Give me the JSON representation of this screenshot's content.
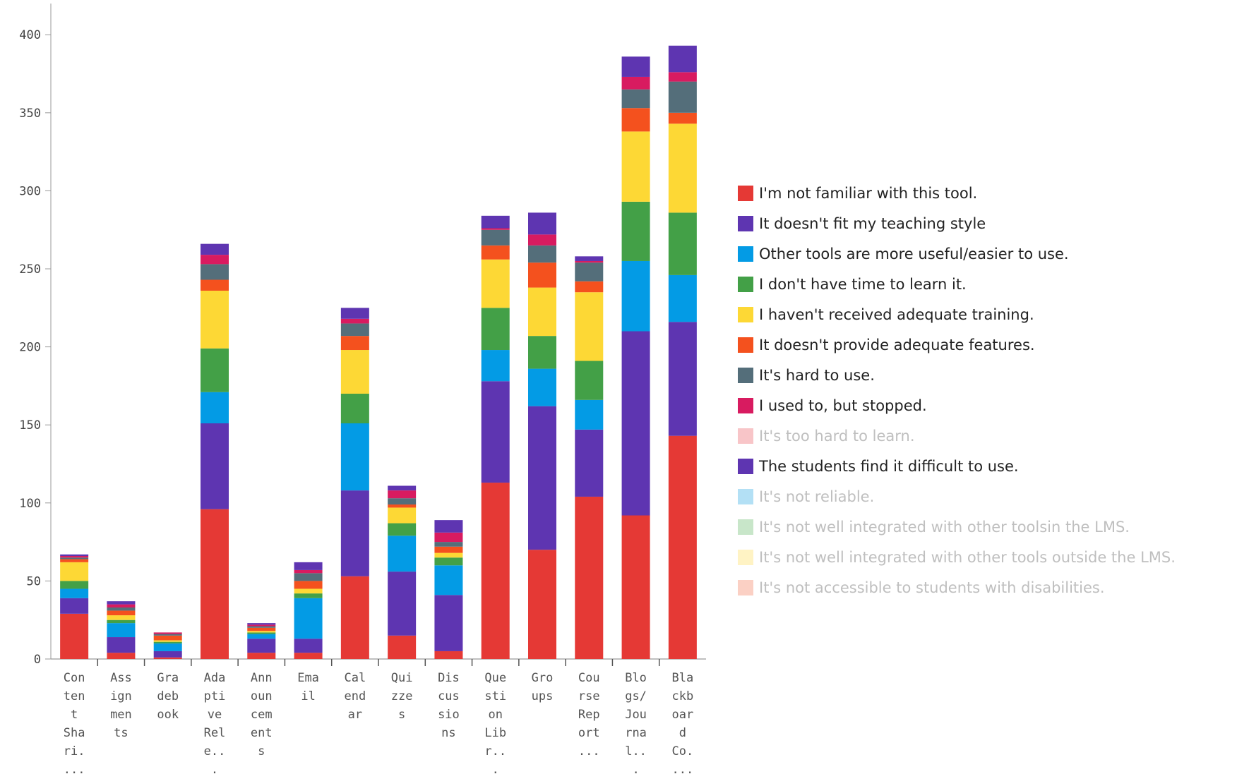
{
  "chart_data": {
    "type": "bar",
    "stacked": true,
    "ylim": [
      0,
      420
    ],
    "yticks": [
      0,
      50,
      100,
      150,
      200,
      250,
      300,
      350,
      400
    ],
    "legend_position": "right",
    "grid": false,
    "categories": [
      [
        "Con",
        "ten",
        "t",
        "Sha",
        "ri.",
        "..."
      ],
      [
        "Ass",
        "ign",
        "men",
        "ts"
      ],
      [
        "Gra",
        "deb",
        "ook"
      ],
      [
        "Ada",
        "pti",
        "ve",
        "Rel",
        "e..",
        "."
      ],
      [
        "Ann",
        "oun",
        "cem",
        "ent",
        "s"
      ],
      [
        "Ema",
        "il"
      ],
      [
        "Cal",
        "end",
        "ar"
      ],
      [
        "Qui",
        "zze",
        "s"
      ],
      [
        "Dis",
        "cus",
        "sio",
        "ns"
      ],
      [
        "Que",
        "sti",
        "on",
        "Lib",
        "r..",
        "."
      ],
      [
        "Gro",
        "ups"
      ],
      [
        "Cou",
        "rse",
        "Rep",
        "ort",
        "..."
      ],
      [
        "Blo",
        "gs/",
        "Jou",
        "rna",
        "l..",
        "."
      ],
      [
        "Bla",
        "ckb",
        "oar",
        "d",
        "Co.",
        "..."
      ]
    ],
    "series": [
      {
        "name": "I'm not familiar with this tool.",
        "color": "#e53935",
        "active": true,
        "values": [
          29,
          4,
          1,
          96,
          4,
          4,
          53,
          15,
          5,
          113,
          70,
          104,
          92,
          143
        ]
      },
      {
        "name": "It doesn't fit my teaching style",
        "color": "#5e35b1",
        "active": true,
        "values": [
          10,
          10,
          4,
          55,
          9,
          9,
          55,
          41,
          36,
          65,
          92,
          43,
          118,
          73
        ]
      },
      {
        "name": "Other tools are more useful/easier to use.",
        "color": "#039be5",
        "active": true,
        "values": [
          6,
          9,
          5,
          20,
          3,
          26,
          43,
          23,
          19,
          20,
          24,
          19,
          45,
          30
        ]
      },
      {
        "name": "I don't have time to learn it.",
        "color": "#43a047",
        "active": true,
        "values": [
          5,
          2,
          1,
          28,
          1,
          3,
          19,
          8,
          5,
          27,
          21,
          25,
          38,
          40
        ]
      },
      {
        "name": "I haven't received adequate training.",
        "color": "#fdd835",
        "active": true,
        "values": [
          12,
          3,
          1,
          37,
          1,
          3,
          28,
          10,
          3,
          31,
          31,
          44,
          45,
          57
        ]
      },
      {
        "name": "It doesn't provide adequate features.",
        "color": "#f4511e",
        "active": true,
        "values": [
          2,
          3,
          3,
          7,
          2,
          5,
          9,
          2,
          4,
          9,
          16,
          7,
          15,
          7
        ]
      },
      {
        "name": "It's hard to use.",
        "color": "#546e7a",
        "active": true,
        "values": [
          1,
          2,
          1,
          10,
          1,
          5,
          8,
          4,
          3,
          10,
          11,
          12,
          12,
          20
        ]
      },
      {
        "name": "I used to, but stopped.",
        "color": "#d81b60",
        "active": true,
        "values": [
          1,
          2,
          1,
          6,
          1,
          2,
          3,
          5,
          6,
          1,
          7,
          1,
          8,
          6
        ]
      },
      {
        "name": "It's too hard to learn.",
        "color": "#f8c5c8",
        "active": false,
        "values": [
          0,
          0,
          0,
          0,
          0,
          0,
          0,
          0,
          0,
          0,
          0,
          0,
          0,
          0
        ]
      },
      {
        "name": "The students find it difficult to use.",
        "color": "#5e35b1",
        "active": true,
        "values": [
          1,
          2,
          0,
          7,
          1,
          5,
          7,
          3,
          8,
          8,
          14,
          3,
          13,
          17
        ]
      },
      {
        "name": "It's not reliable.",
        "color": "#b3e0f5",
        "active": false,
        "values": [
          0,
          0,
          0,
          0,
          0,
          0,
          0,
          0,
          0,
          0,
          0,
          0,
          0,
          0
        ]
      },
      {
        "name": "It's not well integrated with other toolsin the LMS.",
        "color": "#c8e6c9",
        "active": false,
        "values": [
          0,
          0,
          0,
          0,
          0,
          0,
          0,
          0,
          0,
          0,
          0,
          0,
          0,
          0
        ]
      },
      {
        "name": "It's not well integrated with other tools outside the LMS.",
        "color": "#fff3c4",
        "active": false,
        "values": [
          0,
          0,
          0,
          0,
          0,
          0,
          0,
          0,
          0,
          0,
          0,
          0,
          0,
          0
        ]
      },
      {
        "name": "It's not accessible to students with disabilities.",
        "color": "#fbd0c4",
        "active": false,
        "values": [
          0,
          0,
          0,
          0,
          0,
          0,
          0,
          0,
          0,
          0,
          0,
          0,
          0,
          0
        ]
      }
    ]
  }
}
